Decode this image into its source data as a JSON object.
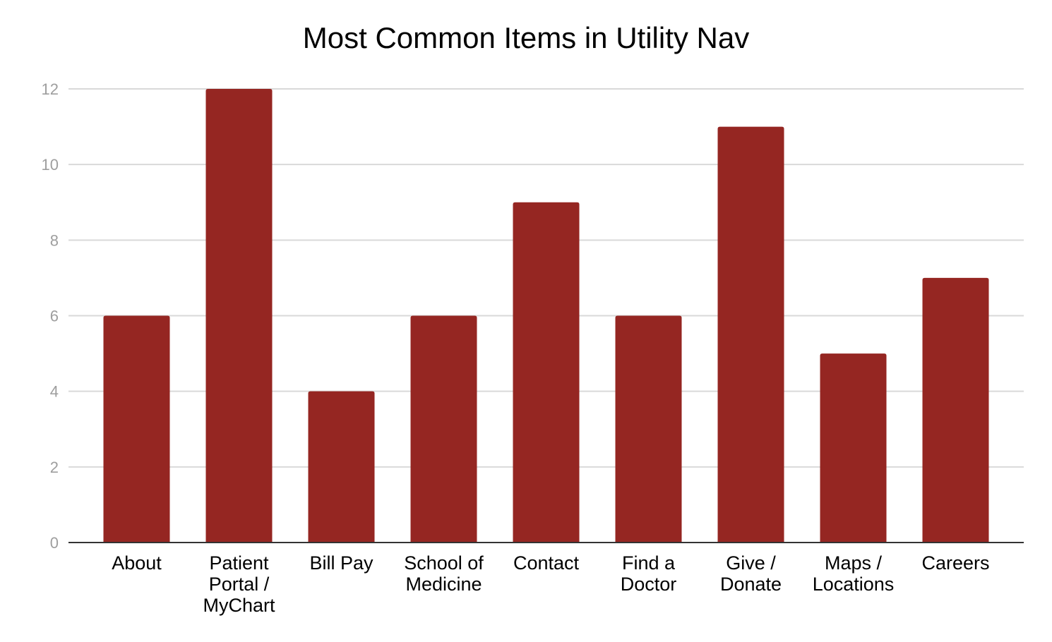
{
  "chart_data": {
    "type": "bar",
    "title": "Most Common Items in Utility Nav",
    "xlabel": "",
    "ylabel": "",
    "categories": [
      [
        "About"
      ],
      [
        "Patient",
        "Portal /",
        "MyChart"
      ],
      [
        "Bill Pay"
      ],
      [
        "School of",
        "Medicine"
      ],
      [
        "Contact"
      ],
      [
        "Find a",
        "Doctor"
      ],
      [
        "Give /",
        "Donate"
      ],
      [
        "Maps /",
        "Locations"
      ],
      [
        "Careers"
      ]
    ],
    "values": [
      6,
      12,
      4,
      6,
      9,
      6,
      11,
      5,
      7
    ],
    "ylim": [
      0,
      12
    ],
    "yticks": [
      0,
      2,
      4,
      6,
      8,
      10,
      12
    ],
    "grid": true,
    "legend": "none",
    "colors": {
      "bar": "#952622",
      "grid": "#d9d9d9",
      "axis": "#333333",
      "tick_label": "#9e9e9e"
    }
  }
}
